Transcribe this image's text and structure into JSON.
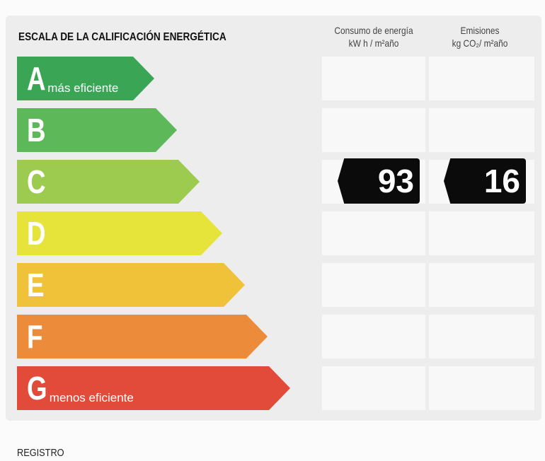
{
  "title": "ESCALA DE LA CALIFICACIÓN ENERGÉTICA",
  "columns": [
    {
      "label": "Consumo de energía",
      "unit": "kW h / m²año"
    },
    {
      "label": "Emisiones",
      "unit": "kg CO₂/ m²año"
    }
  ],
  "classes": [
    {
      "letter": "A",
      "note": "más eficiente",
      "color": "#3aa655"
    },
    {
      "letter": "B",
      "note": "",
      "color": "#5db85a"
    },
    {
      "letter": "C",
      "note": "",
      "color": "#9ccb4f"
    },
    {
      "letter": "D",
      "note": "",
      "color": "#e6e43a"
    },
    {
      "letter": "E",
      "note": "",
      "color": "#f0c23a"
    },
    {
      "letter": "F",
      "note": "",
      "color": "#ec8c3a"
    },
    {
      "letter": "G",
      "note": "menos eficiente",
      "color": "#e24b3a"
    }
  ],
  "rating": {
    "class": "C",
    "consumption": "93",
    "emissions": "16"
  },
  "footer": "REGISTRO"
}
